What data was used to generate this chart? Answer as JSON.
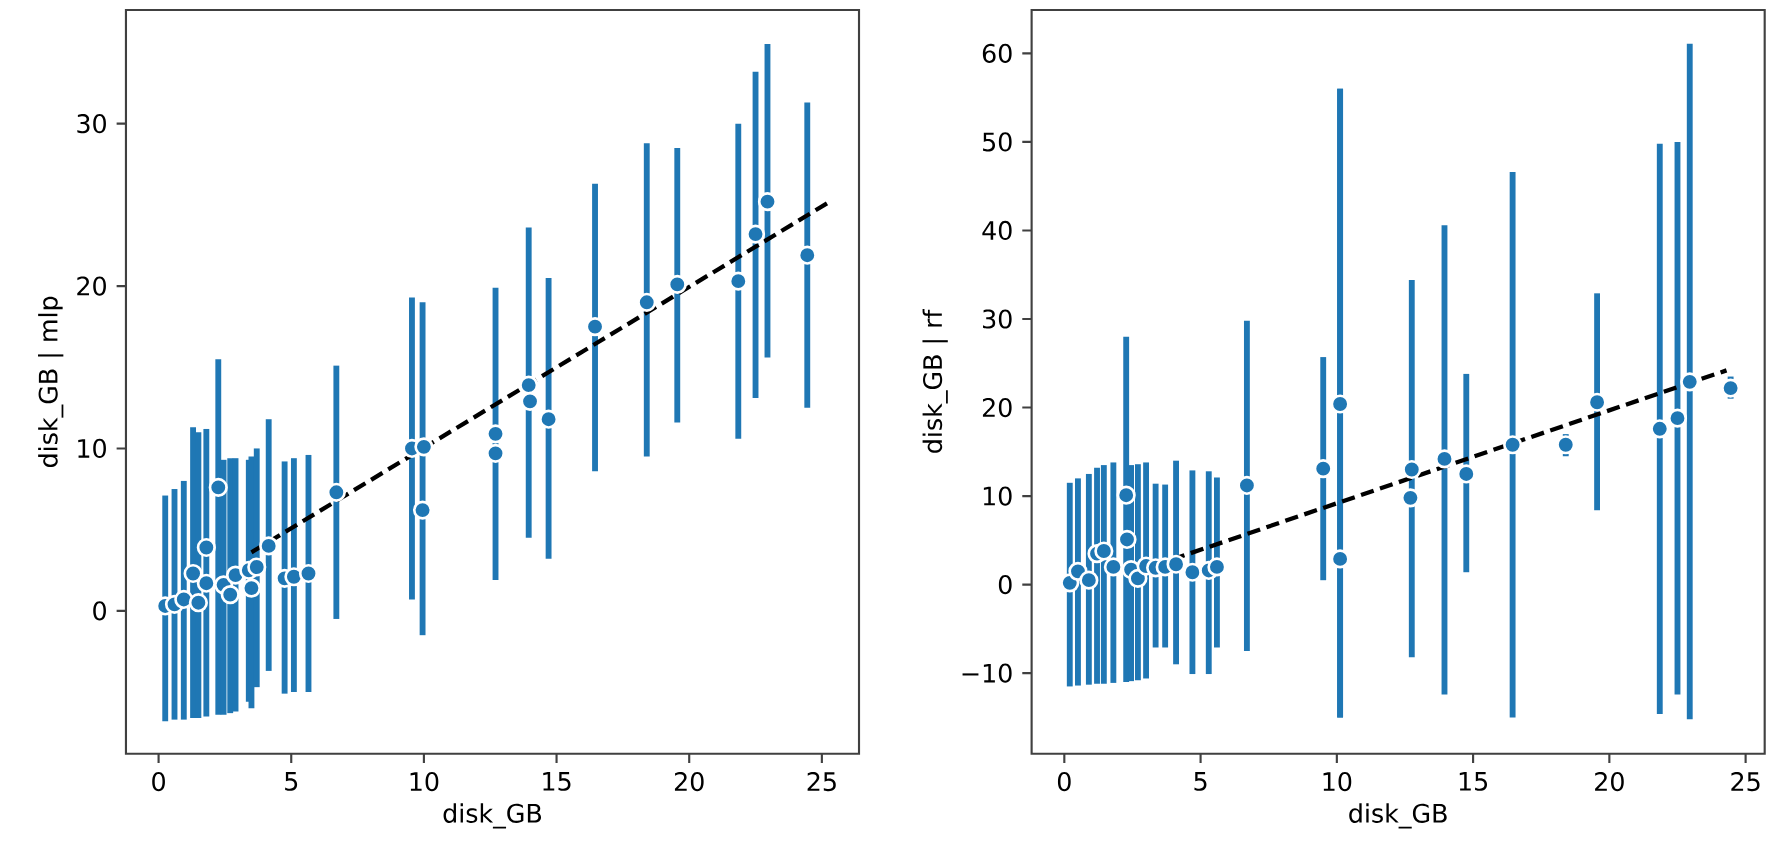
{
  "chart_data": [
    {
      "type": "scatter",
      "xlabel": "disk_GB",
      "ylabel": "disk_GB | mlp",
      "xlim": [
        -1.23,
        26.4
      ],
      "ylim": [
        -8.8,
        37.0
      ],
      "xticks": [
        0,
        5,
        10,
        15,
        20,
        25
      ],
      "yticks": [
        0,
        10,
        20,
        30
      ],
      "series": [
        {
          "color": "#1f77b4",
          "marker": "circle",
          "x": [
            0.25,
            0.6,
            0.95,
            1.3,
            1.5,
            1.8,
            1.8,
            2.25,
            2.45,
            2.7,
            2.9,
            3.4,
            3.5,
            3.7,
            4.15,
            4.75,
            5.1,
            5.65,
            6.7,
            9.55,
            10.0,
            9.95,
            12.7,
            12.7,
            13.95,
            14.0,
            14.7,
            16.45,
            18.4,
            19.55,
            21.85,
            22.5,
            22.95,
            24.45
          ],
          "values": [
            0.3,
            0.4,
            0.7,
            2.3,
            0.5,
            3.9,
            1.7,
            7.6,
            1.6,
            1.0,
            2.2,
            2.5,
            1.4,
            2.7,
            4.0,
            2.0,
            2.1,
            2.3,
            7.3,
            10.0,
            10.1,
            6.2,
            10.9,
            9.7,
            13.9,
            12.9,
            11.8,
            17.5,
            19.0,
            20.1,
            20.3,
            23.2,
            25.2,
            21.9
          ],
          "errors": [
            [
              -6.8,
              7.1
            ],
            [
              -6.7,
              7.5
            ],
            [
              -6.7,
              8.0
            ],
            [
              -6.6,
              11.3
            ],
            [
              -6.6,
              11.0
            ],
            [
              -6.5,
              11.2
            ],
            null,
            [
              -6.4,
              15.5
            ],
            [
              -6.4,
              9.3
            ],
            [
              -6.3,
              9.4
            ],
            [
              -6.2,
              9.4
            ],
            [
              -5.6,
              9.3
            ],
            [
              -6.0,
              9.5
            ],
            [
              -4.7,
              10.0
            ],
            [
              -3.7,
              11.8
            ],
            [
              -5.1,
              9.2
            ],
            [
              -5.0,
              9.4
            ],
            [
              -5.0,
              9.6
            ],
            [
              -0.5,
              15.1
            ],
            [
              0.7,
              19.3
            ],
            null,
            [
              -1.5,
              19.0
            ],
            [
              1.9,
              19.9
            ],
            null,
            [
              4.5,
              23.6
            ],
            null,
            [
              3.2,
              20.5
            ],
            [
              8.6,
              26.3
            ],
            [
              9.5,
              28.8
            ],
            [
              11.6,
              28.5
            ],
            [
              10.6,
              30.0
            ],
            [
              13.1,
              33.2
            ],
            [
              15.6,
              34.9
            ],
            [
              12.5,
              31.3
            ]
          ]
        },
        {
          "type": "line",
          "color": "#000000",
          "line_style": "dashed",
          "x": [
            3.5,
            25.3
          ],
          "values": [
            3.6,
            25.2
          ]
        }
      ]
    },
    {
      "type": "scatter",
      "xlabel": "disk_GB",
      "ylabel": "disk_GB | rf",
      "xlim": [
        -1.2,
        25.7
      ],
      "ylim": [
        -19.1,
        64.9
      ],
      "xticks": [
        0,
        5,
        10,
        15,
        20,
        25
      ],
      "yticks": [
        {
          "value": -10,
          "label": "−10"
        },
        0,
        10,
        20,
        30,
        40,
        50,
        60
      ],
      "series": [
        {
          "color": "#1f77b4",
          "marker": "circle",
          "x": [
            0.2,
            0.5,
            0.9,
            1.2,
            1.45,
            1.8,
            2.27,
            2.3,
            2.45,
            2.7,
            3.0,
            3.35,
            3.7,
            4.1,
            4.7,
            5.3,
            5.6,
            6.7,
            9.5,
            10.12,
            10.12,
            12.75,
            12.7,
            13.95,
            14.75,
            16.45,
            18.4,
            19.55,
            21.85,
            22.5,
            22.95,
            24.45
          ],
          "values": [
            0.2,
            1.5,
            0.5,
            3.5,
            3.8,
            2.0,
            10.1,
            5.1,
            1.7,
            0.7,
            2.1,
            1.9,
            2.0,
            2.3,
            1.4,
            1.6,
            2.0,
            11.2,
            13.1,
            20.4,
            2.9,
            13.0,
            9.8,
            14.2,
            12.5,
            15.8,
            15.8,
            20.6,
            17.6,
            18.8,
            22.9,
            22.2
          ],
          "errors": [
            [
              -11.5,
              11.5
            ],
            [
              -11.4,
              12.0
            ],
            [
              -11.3,
              12.5
            ],
            [
              -11.2,
              13.2
            ],
            [
              -11.2,
              13.5
            ],
            [
              -11.1,
              13.8
            ],
            [
              -11.0,
              28.0
            ],
            null,
            [
              -10.9,
              13.5
            ],
            [
              -10.8,
              13.6
            ],
            [
              -10.6,
              13.8
            ],
            [
              -7.1,
              11.4
            ],
            [
              -7.1,
              11.3
            ],
            [
              -9.0,
              14.0
            ],
            [
              -10.1,
              12.9
            ],
            [
              -10.1,
              12.8
            ],
            [
              -7.1,
              12.1
            ],
            [
              -7.5,
              29.8
            ],
            [
              0.5,
              25.7
            ],
            [
              -15.0,
              56.0
            ],
            [
              -15.0,
              56.0
            ],
            [
              -8.2,
              34.4
            ],
            null,
            [
              -12.4,
              40.6
            ],
            [
              1.4,
              23.8
            ],
            [
              -15.0,
              46.6
            ],
            [
              14.5,
              17.0
            ],
            [
              8.4,
              32.9
            ],
            [
              -14.6,
              49.8
            ],
            [
              -12.4,
              50.0
            ],
            [
              -15.2,
              61.1
            ],
            [
              21.0,
              23.5
            ]
          ]
        },
        {
          "type": "line",
          "color": "#000000",
          "line_style": "dashed",
          "x": [
            3.25,
            24.3
          ],
          "values": [
            2.1,
            24.2
          ]
        }
      ]
    }
  ]
}
